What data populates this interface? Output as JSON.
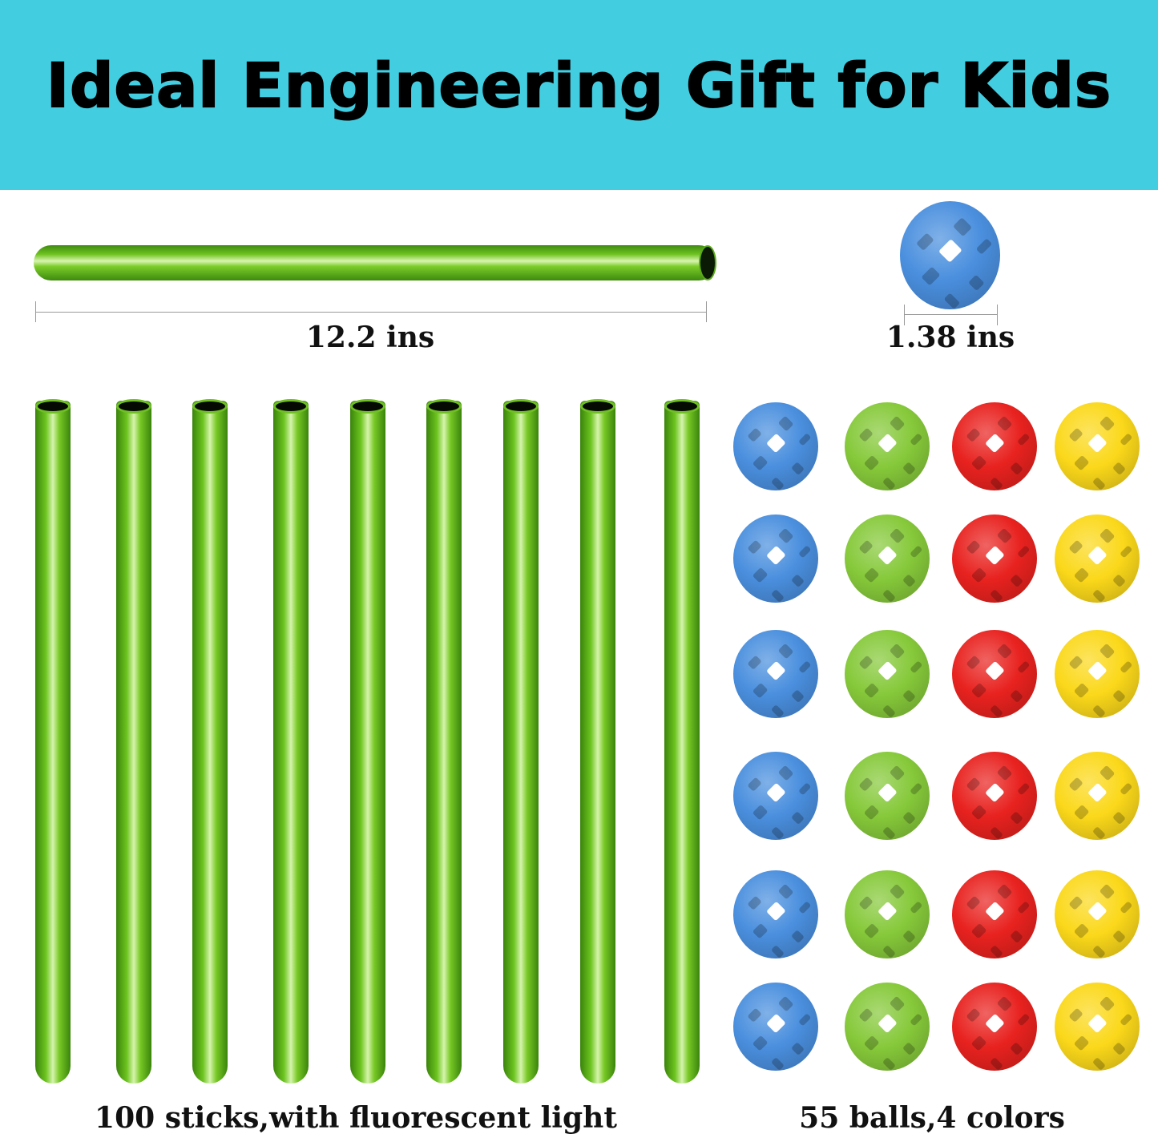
{
  "title": "Ideal Engineering Gift for Kids",
  "stick_length_label": "12.2 ins",
  "ball_diameter_label": "1.38 ins",
  "sticks_caption": "100 sticks,with fluorescent light",
  "balls_caption": "55 balls,4 colors",
  "colors": {
    "banner": "#42cde0",
    "ball_colors": [
      "#4a8fde",
      "#86c93a",
      "#e8221f",
      "#fbd81a"
    ]
  },
  "stick_count_shown": 9,
  "ball_rows_shown": 6
}
